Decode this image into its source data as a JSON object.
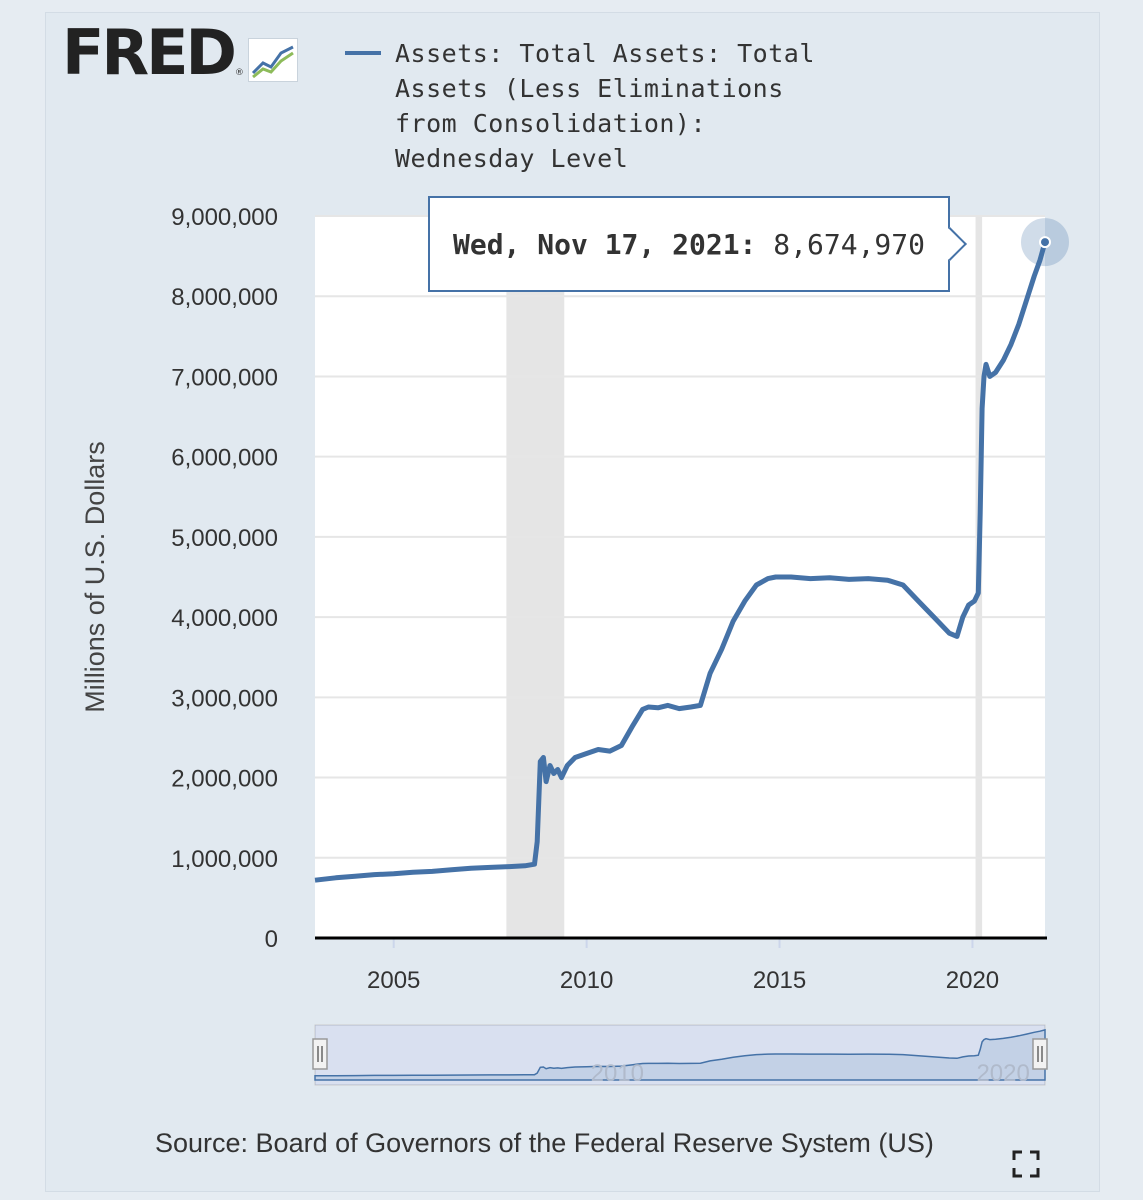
{
  "brand": {
    "logo_text": "FRED",
    "logo_mark": "®"
  },
  "legend": {
    "label": "Assets: Total Assets: Total Assets (Less Eliminations from Consolidation): Wednesday Level",
    "color": "#4572a7"
  },
  "tooltip": {
    "date": "Wed, Nov 17, 2021:",
    "value": "8,674,970"
  },
  "source": "Source: Board of Governors of the Federal Reserve System (US)",
  "colors": {
    "series": "#4572a7",
    "recession": "#e5e5e5",
    "grid": "#e6e6e6",
    "navigator_fill": "#c3d1e6"
  },
  "chart_data": {
    "type": "line",
    "title": "",
    "xlabel": "",
    "ylabel": "Millions of U.S. Dollars",
    "ylim": [
      0,
      9000000
    ],
    "xlim": [
      2002.96,
      2021.88
    ],
    "y_ticks": [
      0,
      1000000,
      2000000,
      3000000,
      4000000,
      5000000,
      6000000,
      7000000,
      8000000,
      9000000
    ],
    "y_tick_labels": [
      "0",
      "1,000,000",
      "2,000,000",
      "3,000,000",
      "4,000,000",
      "5,000,000",
      "6,000,000",
      "7,000,000",
      "8,000,000",
      "9,000,000"
    ],
    "x_ticks": [
      2005,
      2010,
      2015,
      2020
    ],
    "x_tick_labels": [
      "2005",
      "2010",
      "2015",
      "2020"
    ],
    "grid": true,
    "legend_position": "top",
    "recessions": [
      [
        2007.92,
        2009.42
      ],
      [
        2020.08,
        2020.25
      ]
    ],
    "navigator_labels": [
      "2010",
      "2020"
    ],
    "series": [
      {
        "name": "Assets: Total Assets: Total Assets (Less Eliminations from Consolidation): Wednesday Level",
        "x": [
          2002.96,
          2003.5,
          2004.0,
          2004.5,
          2005.0,
          2005.5,
          2006.0,
          2006.5,
          2007.0,
          2007.5,
          2008.0,
          2008.4,
          2008.65,
          2008.72,
          2008.8,
          2008.88,
          2008.95,
          2009.05,
          2009.15,
          2009.25,
          2009.35,
          2009.5,
          2009.7,
          2010.0,
          2010.3,
          2010.6,
          2010.9,
          2011.2,
          2011.45,
          2011.6,
          2011.85,
          2012.1,
          2012.4,
          2012.7,
          2012.95,
          2013.2,
          2013.5,
          2013.8,
          2014.1,
          2014.4,
          2014.7,
          2014.9,
          2015.3,
          2015.8,
          2016.3,
          2016.8,
          2017.3,
          2017.8,
          2018.2,
          2018.6,
          2019.0,
          2019.4,
          2019.6,
          2019.75,
          2019.9,
          2020.05,
          2020.15,
          2020.2,
          2020.25,
          2020.3,
          2020.35,
          2020.45,
          2020.6,
          2020.8,
          2021.0,
          2021.2,
          2021.4,
          2021.6,
          2021.75,
          2021.88
        ],
        "y": [
          720000,
          750000,
          770000,
          790000,
          800000,
          820000,
          830000,
          850000,
          870000,
          880000,
          890000,
          900000,
          920000,
          1200000,
          2200000,
          2250000,
          1950000,
          2150000,
          2050000,
          2100000,
          2000000,
          2150000,
          2250000,
          2300000,
          2350000,
          2330000,
          2400000,
          2650000,
          2850000,
          2880000,
          2870000,
          2900000,
          2860000,
          2880000,
          2900000,
          3300000,
          3600000,
          3950000,
          4200000,
          4400000,
          4480000,
          4500000,
          4500000,
          4480000,
          4490000,
          4470000,
          4480000,
          4460000,
          4400000,
          4200000,
          4000000,
          3800000,
          3760000,
          4000000,
          4150000,
          4200000,
          4300000,
          5300000,
          6600000,
          7000000,
          7150000,
          7000000,
          7050000,
          7200000,
          7400000,
          7650000,
          7950000,
          8250000,
          8450000,
          8674970
        ]
      }
    ]
  }
}
